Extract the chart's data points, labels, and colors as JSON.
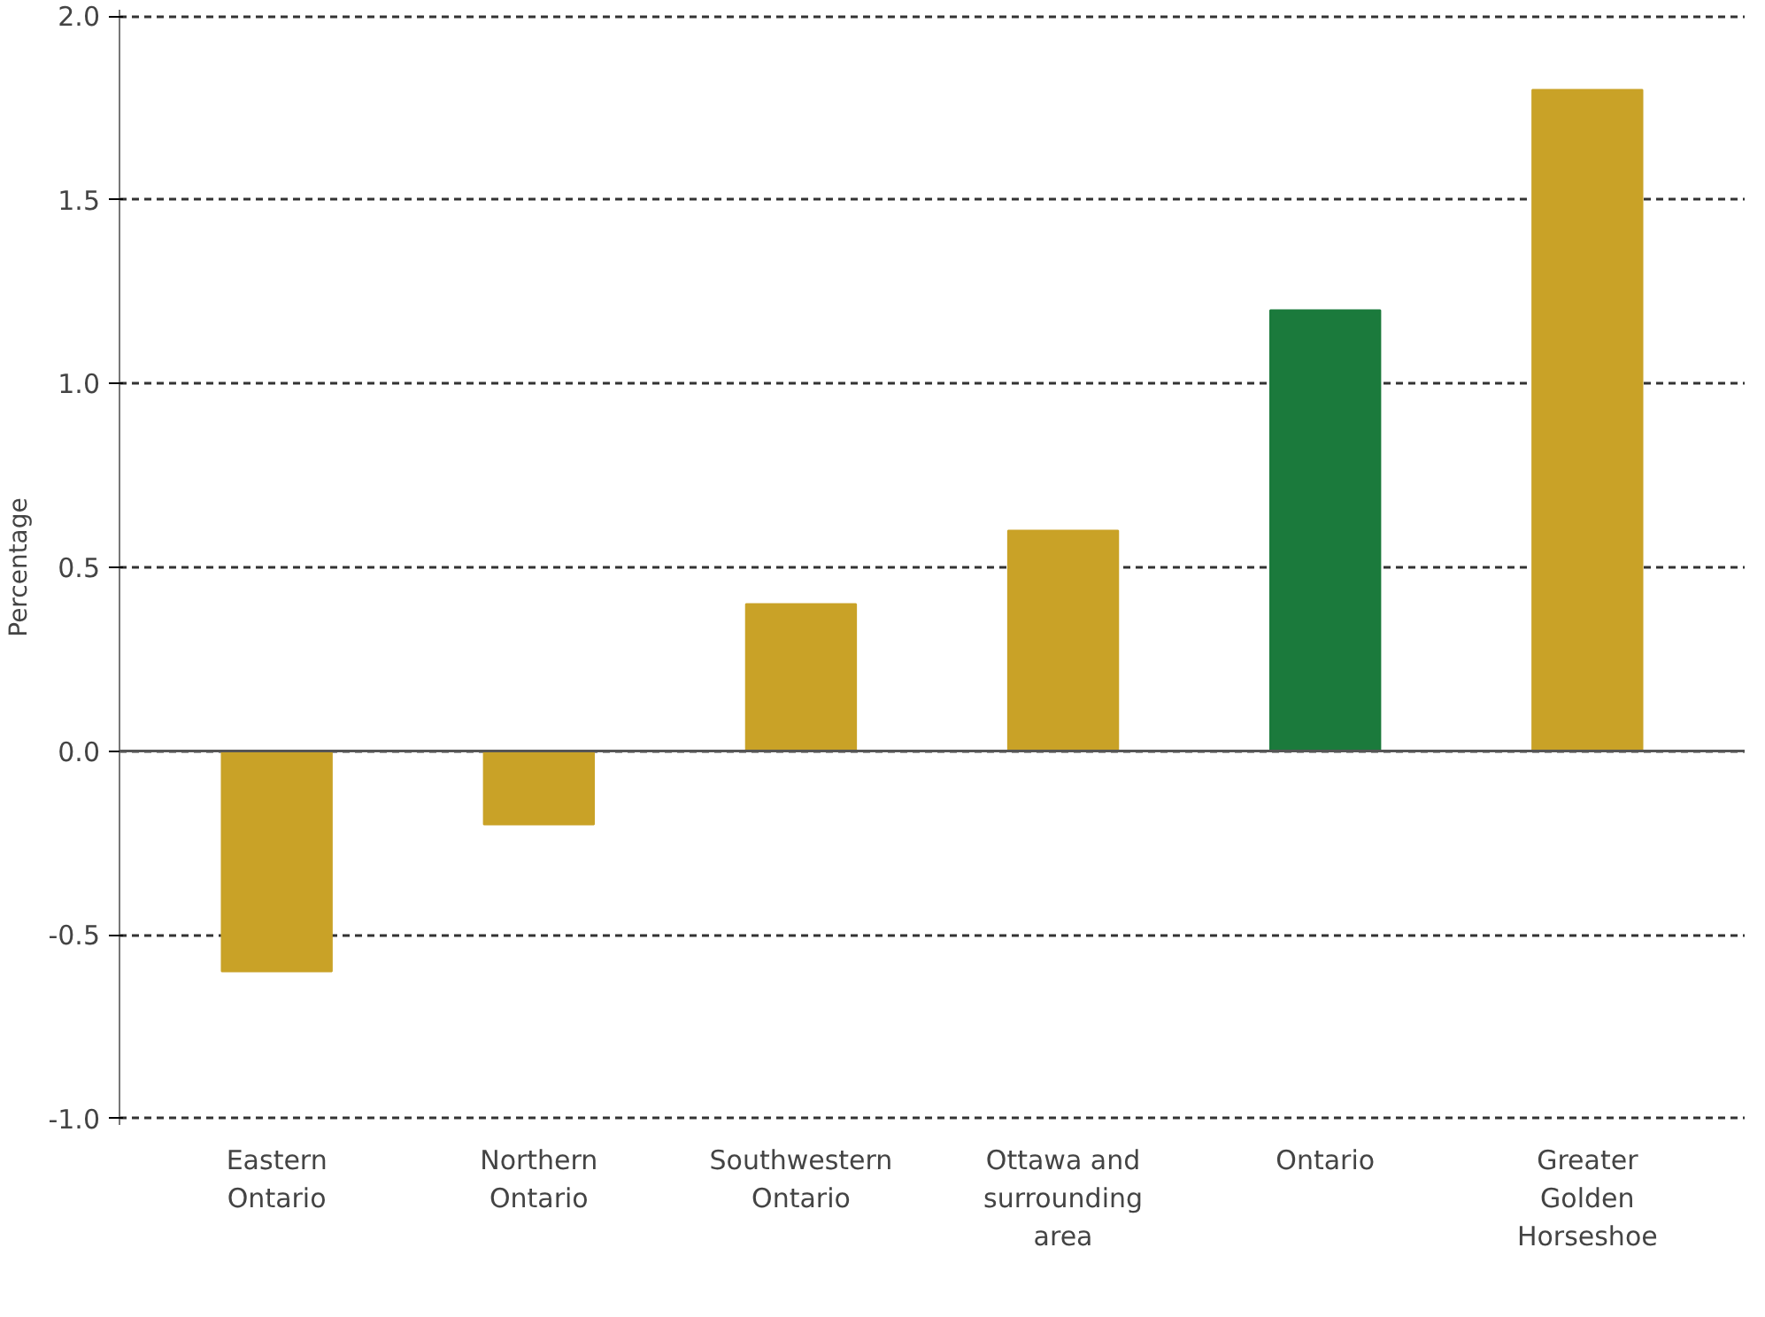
{
  "chart_data": {
    "type": "bar",
    "ylabel": "Percentage",
    "categories": [
      "Eastern\nOntario",
      "Northern\nOntario",
      "Southwestern\nOntario",
      "Ottawa and\nsurrounding\narea",
      "Ontario",
      "Greater\nGolden\nHorseshoe"
    ],
    "values": [
      -0.6,
      -0.2,
      0.4,
      0.6,
      1.2,
      1.8
    ],
    "colors": [
      "#c9a227",
      "#c9a227",
      "#c9a227",
      "#c9a227",
      "#1b7a3c",
      "#c9a227"
    ],
    "ylim": [
      -1.0,
      2.0
    ],
    "yticks": [
      {
        "value": -1.0,
        "label": "-1.0"
      },
      {
        "value": -0.5,
        "label": "-0.5"
      },
      {
        "value": 0.0,
        "label": "0.0"
      },
      {
        "value": 0.5,
        "label": "0.5"
      },
      {
        "value": 1.0,
        "label": "1.0"
      },
      {
        "value": 1.5,
        "label": "1.5"
      },
      {
        "value": 2.0,
        "label": "2.0"
      }
    ],
    "grid": "y",
    "ref_lines": [
      {
        "axis": "y",
        "value": 0,
        "label": null,
        "color": "#555555",
        "line_style": "solid"
      }
    ]
  }
}
